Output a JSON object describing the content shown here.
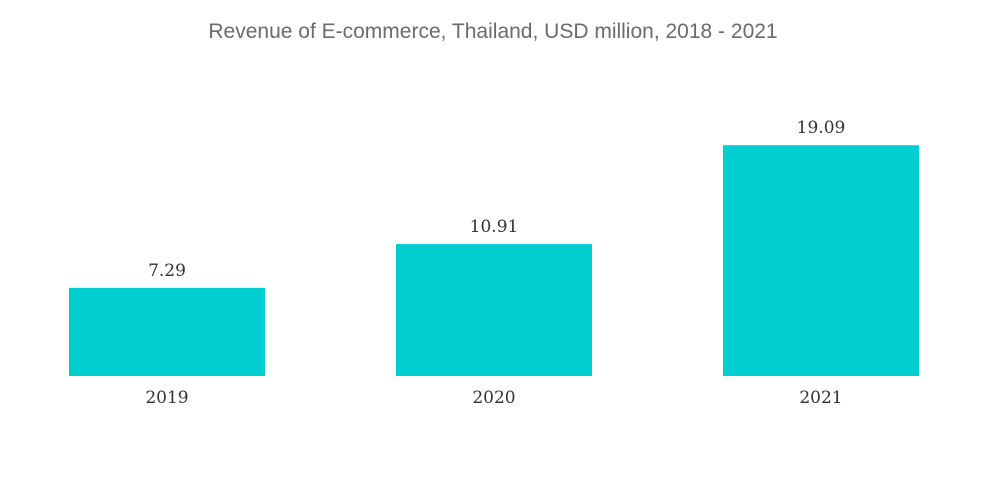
{
  "chart_data": {
    "type": "bar",
    "title": "Revenue of E-commerce, Thailand, USD million, 2018 - 2021",
    "xlabel": "",
    "ylabel": "",
    "categories": [
      "2019",
      "2020",
      "2021"
    ],
    "series": [
      {
        "values": [
          7.29,
          10.91,
          19.09
        ],
        "data_labels": [
          "7.29",
          "10.91",
          "19.09"
        ]
      }
    ],
    "ylim": [
      0,
      22
    ],
    "grid": false,
    "legend": "none",
    "bar_color": "#00CED1"
  }
}
